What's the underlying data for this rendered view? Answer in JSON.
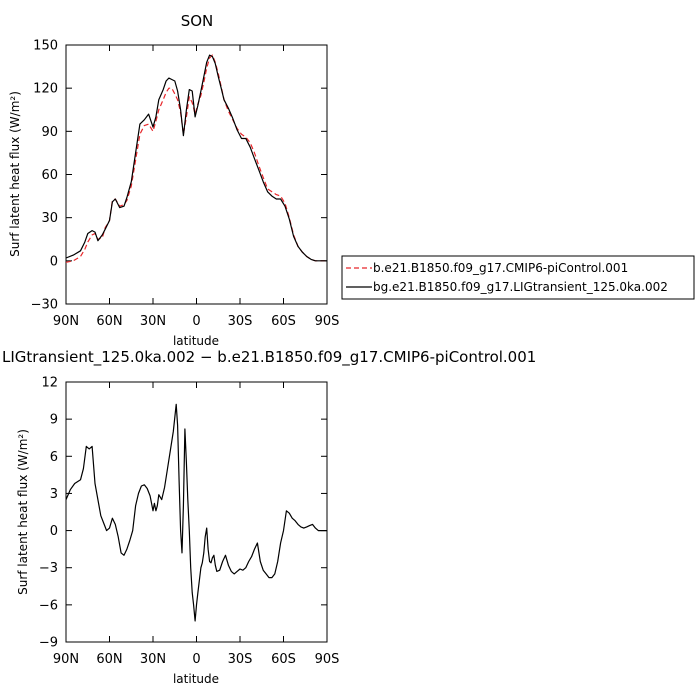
{
  "chart_data": [
    {
      "type": "line",
      "title": "SON",
      "xlabel": "latitude",
      "ylabel": "Surf latent heat flux (W/m²)",
      "ylim": [
        -30,
        150
      ],
      "yticks": [
        -30,
        0,
        30,
        60,
        90,
        120,
        150
      ],
      "xlim": [
        90,
        -90
      ],
      "xticks": [
        90,
        60,
        30,
        0,
        -30,
        -60,
        -90
      ],
      "xticklabels": [
        "90N",
        "60N",
        "30N",
        "0",
        "30S",
        "60S",
        "90S"
      ],
      "legend_position": "right",
      "series": [
        {
          "name": "b.e21.B1850.f09_g17.CMIP6-piControl.001",
          "color": "#e8262a",
          "dash": "dashed",
          "x": [
            90,
            85,
            80,
            77,
            75,
            72,
            70,
            68,
            65,
            63,
            60,
            58,
            56,
            53,
            50,
            48,
            45,
            42,
            39,
            36,
            33,
            30,
            28,
            26,
            23,
            21,
            19,
            17,
            15,
            13,
            11,
            9,
            7,
            5,
            3,
            1,
            -1,
            -3,
            -5,
            -7,
            -9,
            -11,
            -13,
            -15,
            -17,
            -19,
            -22,
            -25,
            -28,
            -31,
            -34,
            -37,
            -40,
            -43,
            -46,
            -49,
            -52,
            -55,
            -58,
            -61,
            -64,
            -67,
            -70,
            -73,
            -76,
            -79,
            -82,
            -85,
            -88,
            -90
          ],
          "y": [
            -1,
            0,
            3,
            8,
            13,
            18,
            19,
            15,
            16,
            23,
            28,
            42,
            43,
            38,
            39,
            42,
            52,
            70,
            88,
            94,
            95,
            90,
            97,
            105,
            112,
            117,
            120,
            120,
            116,
            112,
            103,
            88,
            100,
            114,
            110,
            102,
            109,
            115,
            124,
            134,
            141,
            143,
            138,
            130,
            121,
            112,
            104,
            98,
            92,
            88,
            86,
            82,
            75,
            66,
            58,
            50,
            48,
            46,
            45,
            40,
            30,
            18,
            10,
            6,
            3,
            1,
            0,
            0,
            0,
            0
          ]
        },
        {
          "name": "bg.e21.B1850.f09_g17.LIGtransient_125.0ka.002",
          "color": "#000000",
          "dash": "solid",
          "x": [
            90,
            85,
            80,
            77,
            75,
            72,
            70,
            68,
            65,
            63,
            60,
            58,
            56,
            53,
            50,
            48,
            45,
            42,
            39,
            36,
            33,
            30,
            28,
            26,
            23,
            21,
            19,
            17,
            15,
            13,
            11,
            9,
            7,
            5,
            3,
            1,
            -1,
            -3,
            -5,
            -7,
            -9,
            -11,
            -13,
            -15,
            -17,
            -19,
            -22,
            -25,
            -28,
            -31,
            -34,
            -37,
            -40,
            -43,
            -46,
            -49,
            -52,
            -55,
            -58,
            -61,
            -64,
            -67,
            -70,
            -73,
            -76,
            -79,
            -82,
            -85,
            -88,
            -90
          ],
          "y": [
            2,
            4,
            7,
            13,
            19,
            21,
            20,
            14,
            18,
            22,
            28,
            41,
            43,
            37,
            38,
            44,
            55,
            75,
            95,
            98,
            102,
            93,
            100,
            112,
            119,
            125,
            127,
            126,
            125,
            118,
            105,
            87,
            105,
            119,
            118,
            100,
            108,
            118,
            128,
            138,
            143,
            142,
            137,
            128,
            120,
            112,
            106,
            99,
            91,
            85,
            85,
            79,
            71,
            63,
            55,
            48,
            45,
            43,
            43,
            38,
            29,
            17,
            10,
            6,
            3,
            1,
            0,
            0,
            0,
            0
          ]
        }
      ]
    },
    {
      "type": "line",
      "title": "LIGtransient_125.0ka.002 − b.e21.B1850.f09_g17.CMIP6-piControl.001",
      "xlabel": "latitude",
      "ylabel": "Surf latent heat flux (W/m²)",
      "ylim": [
        -9,
        12
      ],
      "yticks": [
        -9,
        -6,
        -3,
        0,
        3,
        6,
        9,
        12
      ],
      "xlim": [
        90,
        -90
      ],
      "xticks": [
        90,
        60,
        30,
        0,
        -30,
        -60,
        -90
      ],
      "xticklabels": [
        "90N",
        "60N",
        "30N",
        "0",
        "30S",
        "60S",
        "90S"
      ],
      "series": [
        {
          "color": "#000000",
          "dash": "solid",
          "x": [
            90,
            87,
            84,
            80,
            78,
            76,
            74,
            72,
            70,
            68,
            66,
            64,
            62,
            60,
            58,
            56,
            54,
            52,
            50,
            48,
            46,
            44,
            42,
            40,
            38,
            36,
            34,
            32,
            30,
            29,
            28,
            27,
            26,
            24,
            22,
            20,
            18,
            16,
            14,
            13,
            12,
            11,
            10,
            9,
            8,
            7,
            6,
            5,
            4,
            3,
            2,
            1,
            0,
            -1,
            -2,
            -3,
            -4,
            -5,
            -6,
            -7,
            -8,
            -9,
            -10,
            -11,
            -12,
            -13,
            -14,
            -16,
            -18,
            -20,
            -22,
            -24,
            -26,
            -28,
            -30,
            -32,
            -34,
            -36,
            -38,
            -40,
            -42,
            -44,
            -46,
            -48,
            -50,
            -52,
            -54,
            -56,
            -58,
            -60,
            -62,
            -64,
            -66,
            -68,
            -70,
            -72,
            -74,
            -76,
            -78,
            -80,
            -82,
            -84,
            -86,
            -88,
            -90
          ],
          "y": [
            2.5,
            3.3,
            3.8,
            4.1,
            5.0,
            6.8,
            6.6,
            6.8,
            3.8,
            2.5,
            1.2,
            0.6,
            0.0,
            0.2,
            1.0,
            0.5,
            -0.5,
            -1.8,
            -2.0,
            -1.5,
            -0.8,
            0.0,
            2.0,
            3.0,
            3.6,
            3.7,
            3.4,
            2.8,
            1.6,
            2.2,
            1.6,
            2.0,
            2.9,
            2.5,
            3.5,
            5.0,
            6.5,
            8.0,
            10.2,
            8.5,
            4.0,
            0.0,
            -1.8,
            2.0,
            8.2,
            5.5,
            2.5,
            0.0,
            -3.0,
            -5.0,
            -6.0,
            -7.3,
            -6.0,
            -5.0,
            -4.0,
            -3.0,
            -2.6,
            -1.8,
            -0.5,
            0.2,
            -1.5,
            -2.5,
            -2.6,
            -2.2,
            -2.0,
            -2.8,
            -3.3,
            -3.2,
            -2.5,
            -2.0,
            -2.8,
            -3.3,
            -3.5,
            -3.3,
            -3.1,
            -3.2,
            -3.0,
            -2.5,
            -2.1,
            -1.5,
            -1.0,
            -2.5,
            -3.2,
            -3.5,
            -3.8,
            -3.8,
            -3.5,
            -2.5,
            -1.0,
            0.0,
            1.6,
            1.4,
            1.0,
            0.8,
            0.5,
            0.3,
            0.2,
            0.3,
            0.4,
            0.5,
            0.2,
            0.0,
            0.0,
            0.0,
            0.0
          ]
        }
      ]
    }
  ]
}
